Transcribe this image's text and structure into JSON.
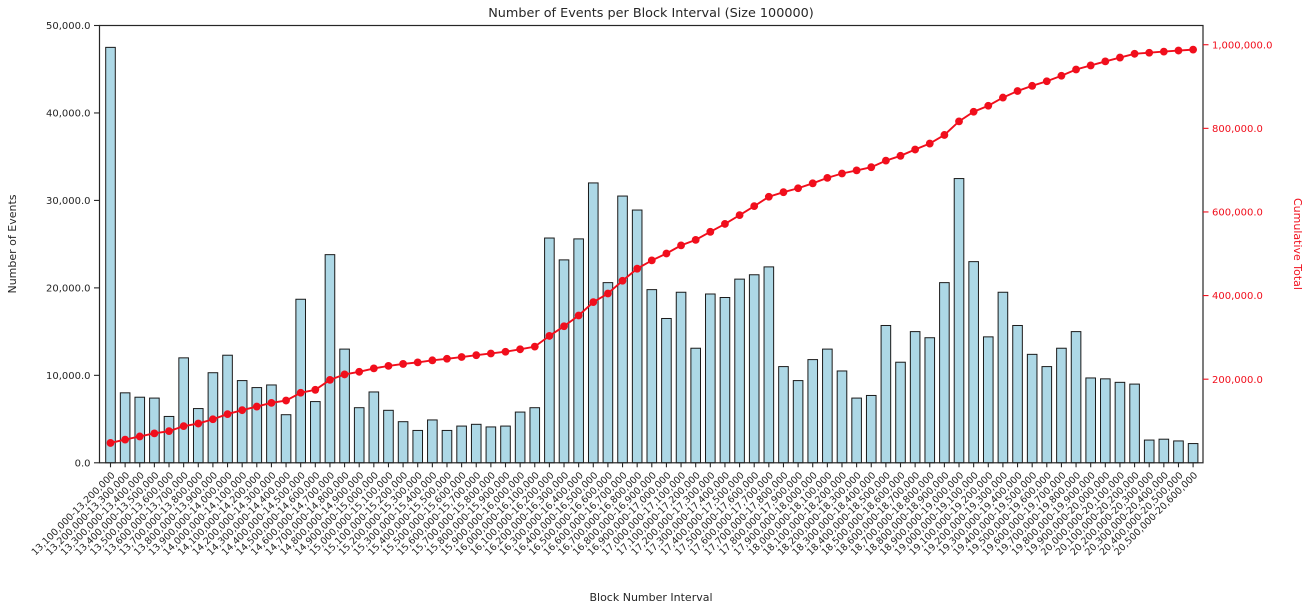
{
  "chart_data": {
    "type": "bar",
    "title": "Number of Events per Block Interval (Size 100000)",
    "xlabel": "Block Number Interval",
    "ylabel": "Number of Events",
    "y2label": "Cumulative Total",
    "ylim": [
      0,
      50000
    ],
    "y2lim": [
      0,
      1046000
    ],
    "grid": false,
    "legend": "none",
    "y_ticks": [
      {
        "value": 0,
        "label": "0.0"
      },
      {
        "value": 10000,
        "label": "10,000.0"
      },
      {
        "value": 20000,
        "label": "20,000.0"
      },
      {
        "value": 30000,
        "label": "30,000.0"
      },
      {
        "value": 40000,
        "label": "40,000.0"
      },
      {
        "value": 50000,
        "label": "50,000.0"
      }
    ],
    "y2_ticks": [
      {
        "value": 200000,
        "label": "200,000.0"
      },
      {
        "value": 400000,
        "label": "400,000.0"
      },
      {
        "value": 600000,
        "label": "600,000.0"
      },
      {
        "value": 800000,
        "label": "800,000.0"
      },
      {
        "value": 1000000,
        "label": "1,000,000.0"
      }
    ],
    "categories": [
      "13,100,000-13,200,000",
      "13,200,000-13,300,000",
      "13,300,000-13,400,000",
      "13,400,000-13,500,000",
      "13,500,000-13,600,000",
      "13,600,000-13,700,000",
      "13,700,000-13,800,000",
      "13,800,000-13,900,000",
      "13,900,000-14,000,000",
      "14,000,000-14,100,000",
      "14,100,000-14,200,000",
      "14,200,000-14,300,000",
      "14,300,000-14,400,000",
      "14,400,000-14,500,000",
      "14,500,000-14,600,000",
      "14,600,000-14,700,000",
      "14,700,000-14,800,000",
      "14,800,000-14,900,000",
      "14,900,000-15,000,000",
      "15,000,000-15,100,000",
      "15,100,000-15,200,000",
      "15,200,000-15,300,000",
      "15,300,000-15,400,000",
      "15,400,000-15,500,000",
      "15,500,000-15,600,000",
      "15,600,000-15,700,000",
      "15,700,000-15,800,000",
      "15,800,000-15,900,000",
      "15,900,000-16,000,000",
      "16,000,000-16,100,000",
      "16,100,000-16,200,000",
      "16,200,000-16,300,000",
      "16,300,000-16,400,000",
      "16,400,000-16,500,000",
      "16,500,000-16,600,000",
      "16,600,000-16,700,000",
      "16,700,000-16,800,000",
      "16,800,000-16,900,000",
      "16,900,000-17,000,000",
      "17,000,000-17,100,000",
      "17,100,000-17,200,000",
      "17,200,000-17,300,000",
      "17,300,000-17,400,000",
      "17,400,000-17,500,000",
      "17,500,000-17,600,000",
      "17,600,000-17,700,000",
      "17,700,000-17,800,000",
      "17,800,000-17,900,000",
      "17,900,000-18,000,000",
      "18,000,000-18,100,000",
      "18,100,000-18,200,000",
      "18,200,000-18,300,000",
      "18,300,000-18,400,000",
      "18,400,000-18,500,000",
      "18,500,000-18,600,000",
      "18,600,000-18,700,000",
      "18,700,000-18,800,000",
      "18,800,000-18,900,000",
      "18,900,000-19,000,000",
      "19,000,000-19,100,000",
      "19,100,000-19,200,000",
      "19,200,000-19,300,000",
      "19,300,000-19,400,000",
      "19,400,000-19,500,000",
      "19,500,000-19,600,000",
      "19,600,000-19,700,000",
      "19,700,000-19,800,000",
      "19,800,000-19,900,000",
      "19,900,000-20,000,000",
      "20,000,000-20,100,000",
      "20,100,000-20,200,000",
      "20,200,000-20,300,000",
      "20,300,000-20,400,000",
      "20,400,000-20,500,000",
      "20,500,000-20,600,000"
    ],
    "series": [
      {
        "name": "Number of Events",
        "kind": "bar",
        "axis": "left",
        "color": "#ADD8E6",
        "edge_color": "#1a1a1a",
        "values": [
          47500,
          8000,
          7500,
          7400,
          5300,
          12000,
          6200,
          10300,
          12300,
          9400,
          8600,
          8900,
          5500,
          18700,
          7000,
          23800,
          13000,
          6300,
          8100,
          6000,
          4700,
          3700,
          4900,
          3700,
          4200,
          4400,
          4100,
          4200,
          5800,
          6300,
          25700,
          23200,
          25600,
          32000,
          20600,
          30500,
          28900,
          19800,
          16500,
          19500,
          13100,
          19300,
          18900,
          21000,
          21500,
          22400,
          11000,
          9400,
          11800,
          13000,
          10500,
          7400,
          7700,
          15700,
          11500,
          15000,
          14300,
          20600,
          32500,
          23000,
          14400,
          19500,
          15700,
          12400,
          11000,
          13100,
          15000,
          9700,
          9600,
          9200,
          9000,
          2600,
          2700,
          2500,
          2200
        ]
      },
      {
        "name": "Cumulative Total",
        "kind": "line",
        "axis": "right",
        "color": "#f10e1c",
        "marker": "circle",
        "values": [
          47500,
          55500,
          63000,
          70400,
          75700,
          87700,
          93900,
          104200,
          116500,
          125900,
          134500,
          143400,
          148900,
          167600,
          174600,
          198400,
          211400,
          217700,
          225800,
          231800,
          236500,
          240200,
          245100,
          248800,
          253000,
          257400,
          261500,
          265700,
          271500,
          277800,
          303500,
          326700,
          352300,
          384300,
          404900,
          435400,
          464300,
          484100,
          500600,
          520100,
          533200,
          552500,
          571400,
          592400,
          613900,
          636300,
          647300,
          656700,
          668500,
          681500,
          692000,
          699400,
          707100,
          722800,
          734300,
          749300,
          763600,
          784200,
          816700,
          839700,
          854100,
          873600,
          889300,
          901700,
          912700,
          925800,
          940800,
          950500,
          960100,
          969300,
          978300,
          980900,
          983600,
          986100,
          988300
        ]
      }
    ],
    "colors": {
      "bar_fill": "#ADD8E6",
      "bar_edge": "#1a1a1a",
      "line": "#f10e1c",
      "axis": "#262626",
      "text": "#262626"
    }
  }
}
